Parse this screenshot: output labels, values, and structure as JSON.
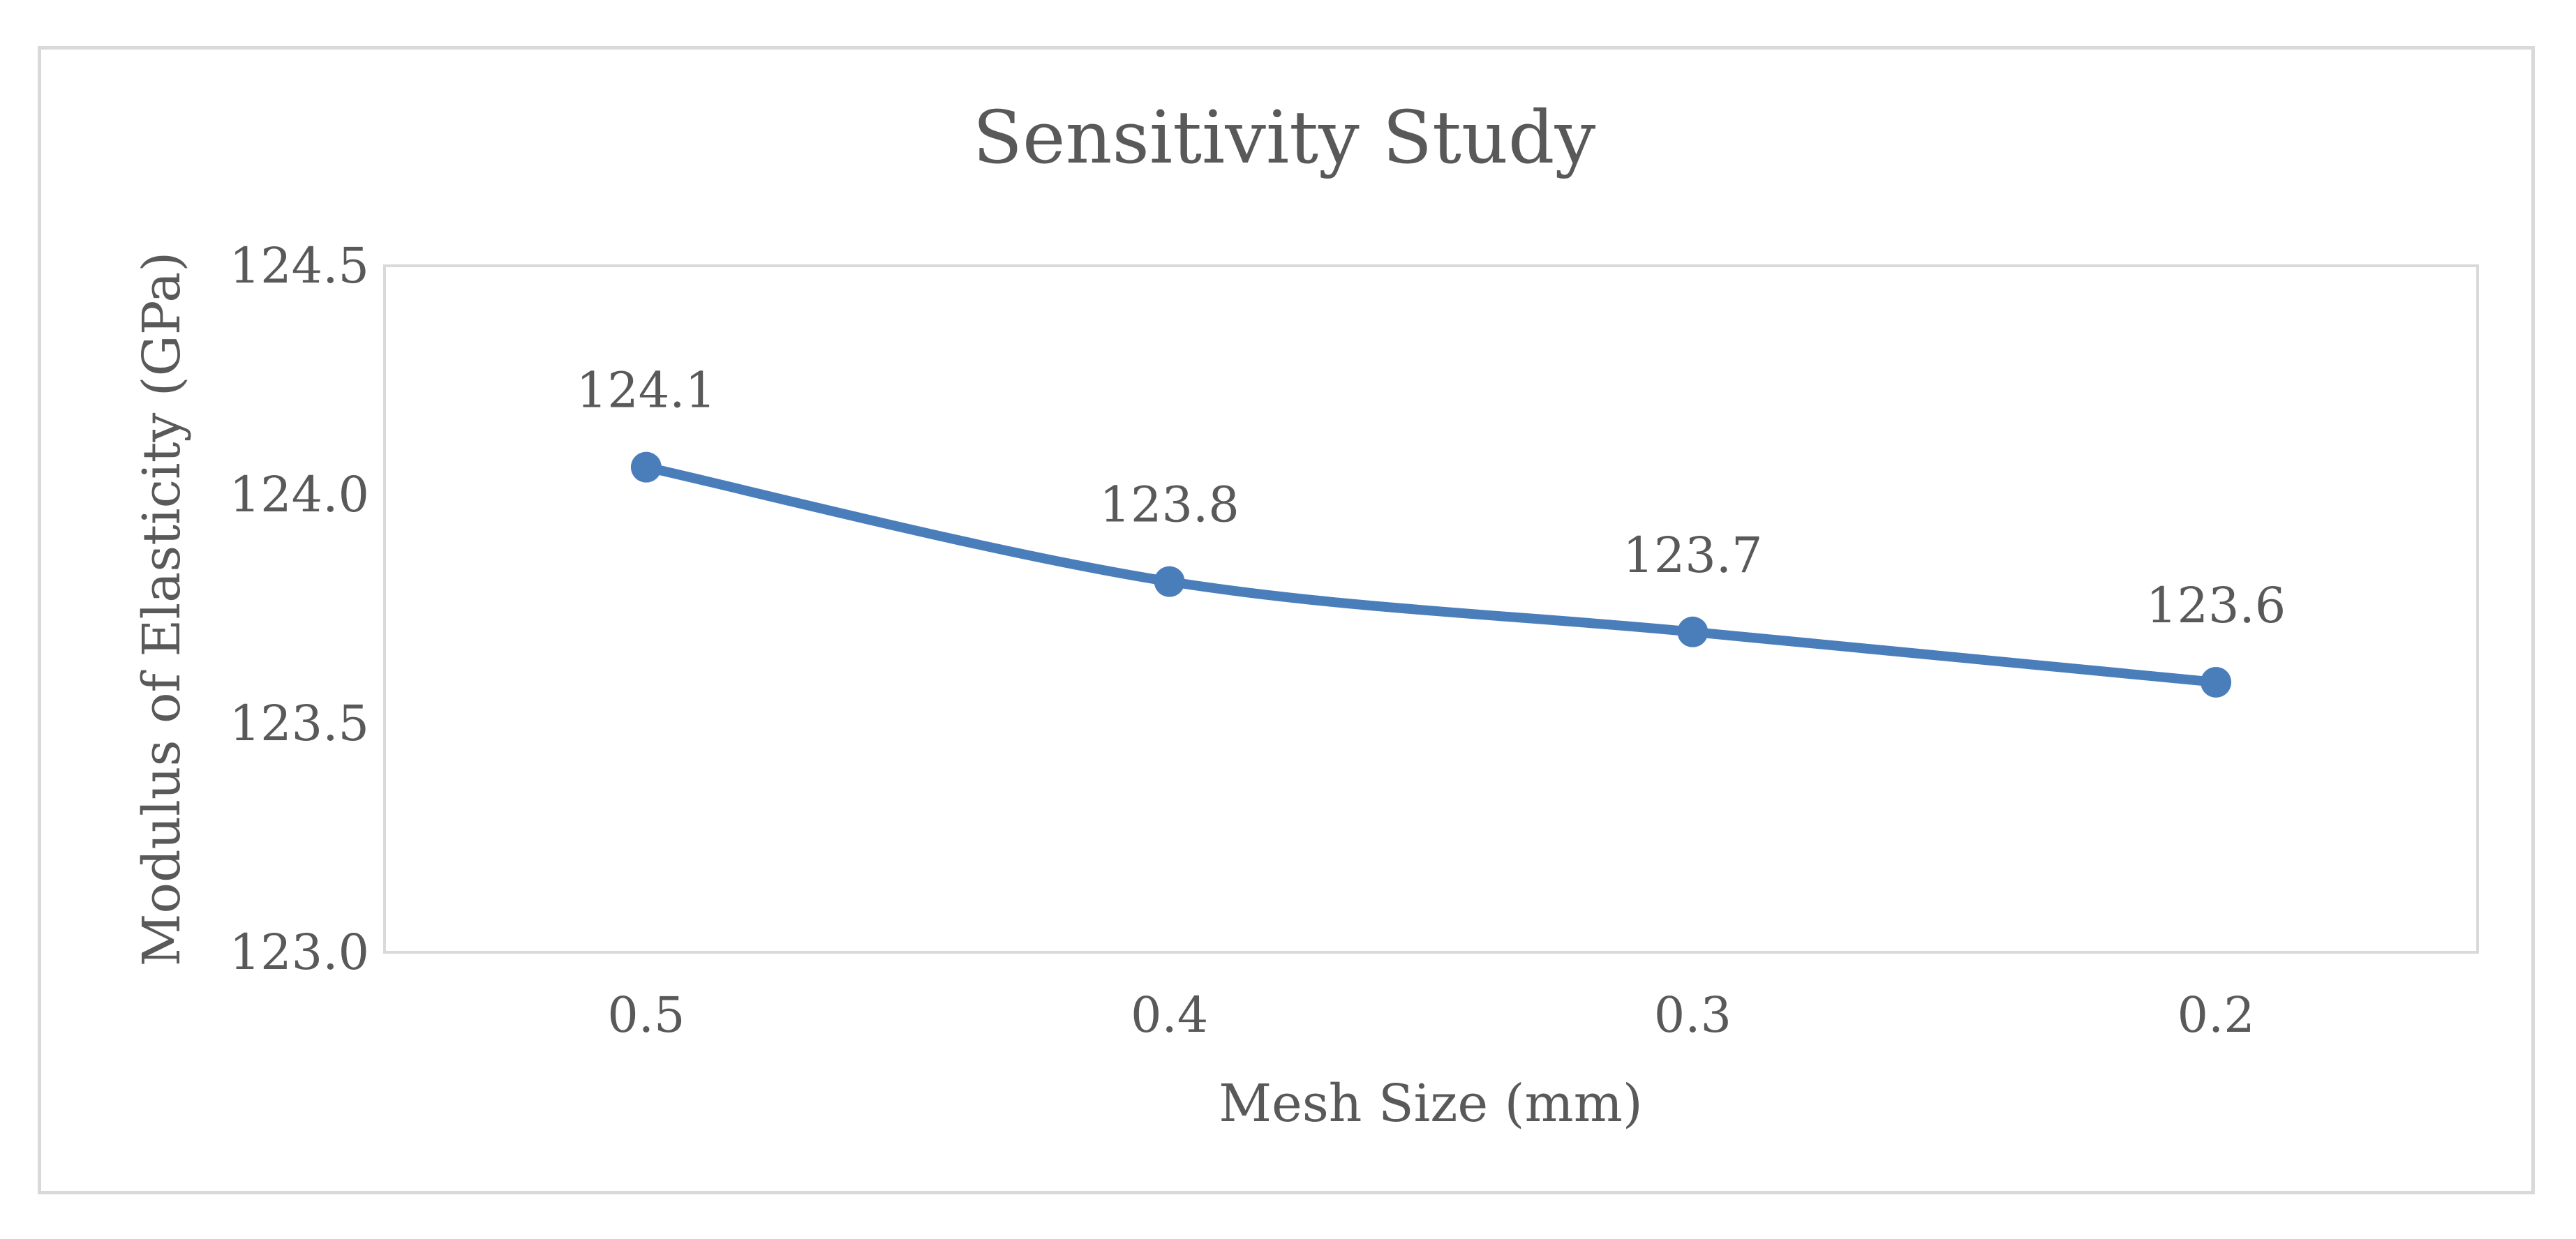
{
  "chart_data": {
    "type": "line",
    "title": "Sensitivity Study",
    "xlabel": "Mesh Size (mm)",
    "ylabel": "Modulus of Elasticity (GPa)",
    "categories": [
      "0.5",
      "0.4",
      "0.3",
      "0.2"
    ],
    "series": [
      {
        "name": "Modulus of Elasticity",
        "values": [
          124.06,
          123.81,
          123.7,
          123.59
        ],
        "data_labels": [
          "124.1",
          "123.8",
          "123.7",
          "123.6"
        ],
        "color": "#4a7ebb"
      }
    ],
    "ylim": [
      123.0,
      124.5
    ],
    "yticks": [
      "123.0",
      "123.5",
      "124.0",
      "124.5"
    ],
    "grid": false,
    "legend": "none",
    "colors": {
      "axis_text": "#595959",
      "plot_border": "#d9d9d9",
      "frame_border": "#d9d9d9"
    }
  }
}
